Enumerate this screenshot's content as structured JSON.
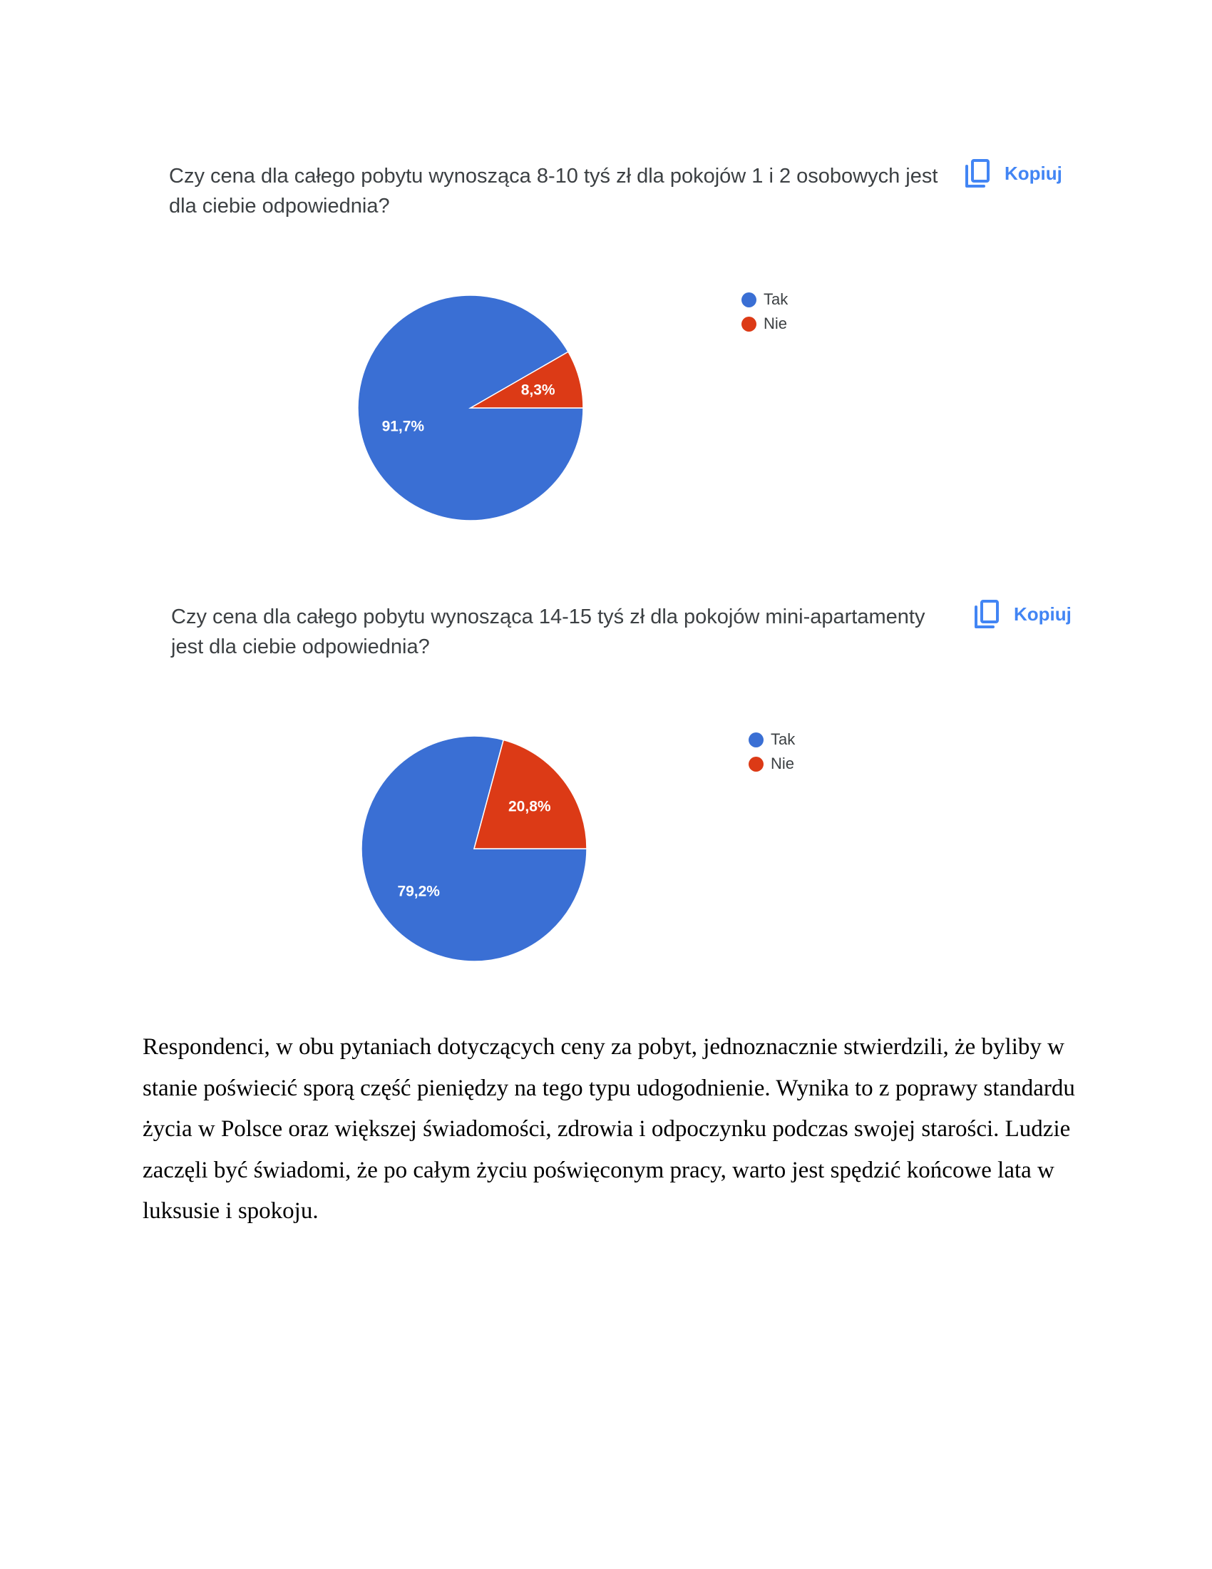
{
  "copy_label": "Kopiuj",
  "colors": {
    "tak": "#3a6fd4",
    "nie": "#dc3a16",
    "accent": "#4285f4"
  },
  "questions": [
    {
      "line1": "Czy cena dla całego pobytu wynosząca 8-10 tyś zł dla pokojów 1 i 2 osobowych jest",
      "line2": "dla ciebie odpowiednia?"
    },
    {
      "line1": "Czy cena dla całego pobytu wynosząca 14-15 tyś zł dla pokojów mini-apartamenty",
      "line2": "jest dla ciebie odpowiednia?"
    }
  ],
  "chart_data": [
    {
      "type": "pie",
      "categories": [
        "Tak",
        "Nie"
      ],
      "values": [
        91.7,
        8.3
      ],
      "labels": [
        "91,7%",
        "8,3%"
      ],
      "legend": "right"
    },
    {
      "type": "pie",
      "categories": [
        "Tak",
        "Nie"
      ],
      "values": [
        79.2,
        20.8
      ],
      "labels": [
        "79,2%",
        "20,8%"
      ],
      "legend": "right"
    }
  ],
  "paragraph": "Respondenci, w obu pytaniach dotyczących ceny za pobyt, jednoznacznie stwierdzili,  że byliby w stanie poświecić sporą część pieniędzy na tego typu udogodnienie. Wynika to z poprawy standardu życia w Polsce oraz większej świadomości, zdrowia i odpoczynku podczas swojej starości. Ludzie zaczęli być świadomi, że po całym życiu poświęconym pracy, warto jest spędzić końcowe lata w luksusie i spokoju."
}
